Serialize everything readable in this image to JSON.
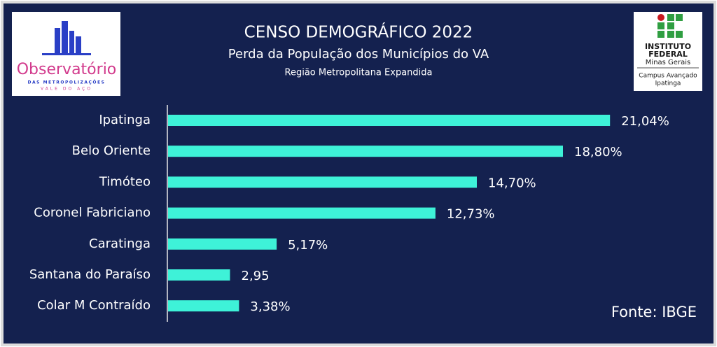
{
  "chart_data": {
    "type": "barh",
    "title": "CENSO DEMOGRÁFICO 2022",
    "subtitle": "Perda da População dos Municípios do VA",
    "subsubtitle": "Região Metropolitana Expandida",
    "categories": [
      "Ipatinga",
      "Belo Oriente",
      "Timóteo",
      "Coronel Fabriciano",
      "Caratinga",
      "Santana do Paraíso",
      "Colar M Contraído"
    ],
    "values": [
      21.04,
      18.8,
      14.7,
      12.73,
      5.17,
      2.95,
      3.38
    ],
    "value_labels": [
      "21,04%",
      "18,80%",
      "14,70%",
      "12,73%",
      "5,17%",
      "2,95",
      "3,38%"
    ],
    "color": "#3ef2d8",
    "xlim": [
      0,
      24
    ],
    "source": "Fonte: IBGE",
    "logo_left": {
      "name": "Observatório",
      "line1": "DAS METROPOLIZAÇÕES",
      "line2": "VALE DO AÇO"
    },
    "logo_right": {
      "line1": "INSTITUTO",
      "line2": "FEDERAL",
      "line3": "Minas Gerais",
      "line4": "Campus Avançado",
      "line5": "Ipatinga"
    }
  }
}
